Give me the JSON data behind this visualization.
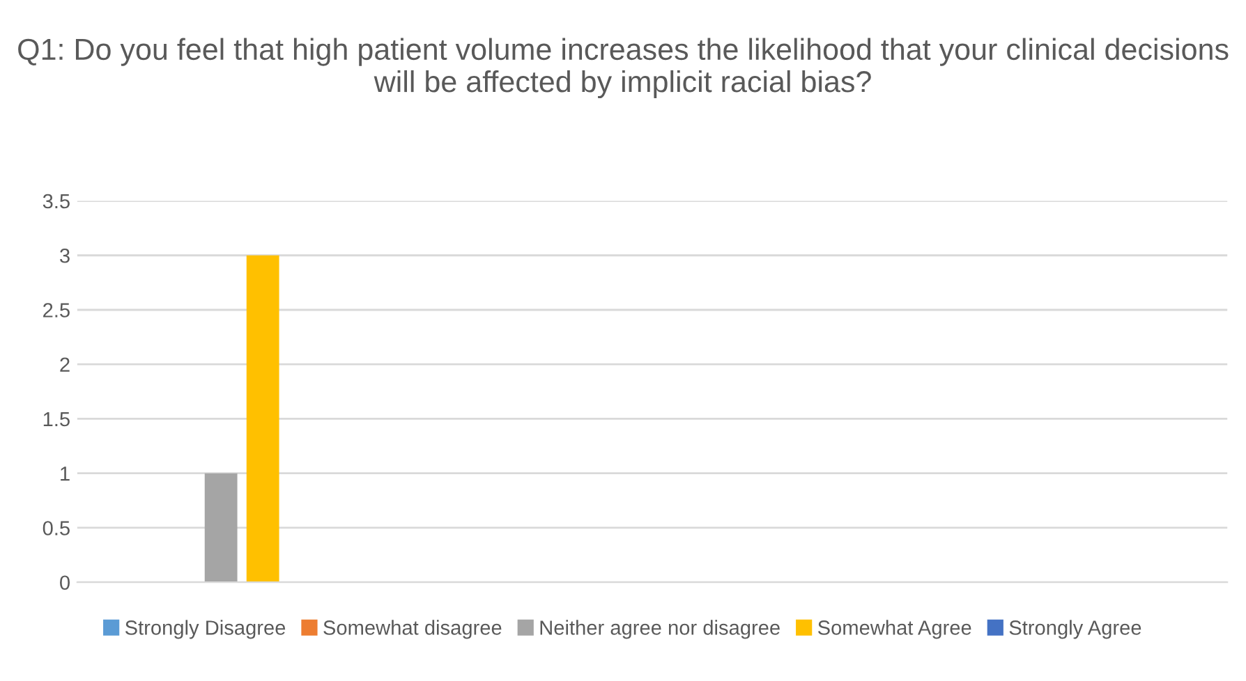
{
  "chart_data": {
    "type": "bar",
    "title": "Q1: Do you feel that high patient volume increases the likelihood that your clinical decisions will be affected by implicit racial bias?",
    "categories": [
      null,
      null,
      null,
      null
    ],
    "series": [
      {
        "name": "Strongly Disagree",
        "color": "#5b9bd5",
        "values": [
          0,
          null,
          null,
          null
        ]
      },
      {
        "name": "Somewhat disagree",
        "color": "#ed7d31",
        "values": [
          0,
          null,
          null,
          null
        ]
      },
      {
        "name": "Neither agree nor disagree",
        "color": "#a5a5a5",
        "values": [
          1,
          null,
          null,
          null
        ]
      },
      {
        "name": "Somewhat Agree",
        "color": "#ffc000",
        "values": [
          3,
          null,
          null,
          null
        ]
      },
      {
        "name": "Strongly Agree",
        "color": "#4472c4",
        "values": [
          0,
          null,
          null,
          null
        ]
      }
    ],
    "ylim": [
      0,
      3.5
    ],
    "yticks": [
      0,
      0.5,
      1,
      1.5,
      2,
      2.5,
      3,
      3.5
    ],
    "grid": "y",
    "legend": "bottom"
  }
}
